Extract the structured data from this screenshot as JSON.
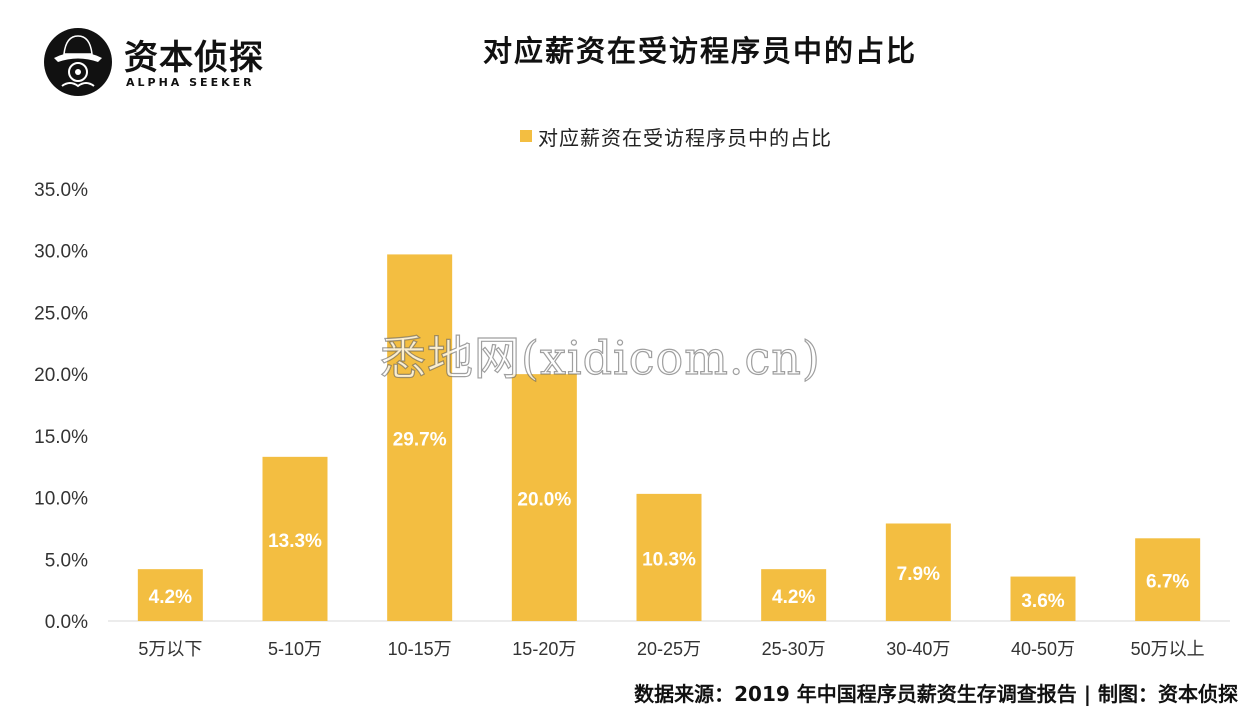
{
  "logo": {
    "name_cn": "资本侦探",
    "name_en": "ALPHA SEEKER",
    "icon": "detective-hat-icon"
  },
  "chart_data": {
    "type": "bar",
    "title": "对应薪资在受访程序员中的占比",
    "categories": [
      "5万以下",
      "5-10万",
      "10-15万",
      "15-20万",
      "20-25万",
      "25-30万",
      "30-40万",
      "40-50万",
      "50万以上"
    ],
    "series": [
      {
        "name": "对应薪资在受访程序员中的占比",
        "values": [
          4.2,
          13.3,
          29.7,
          20.0,
          10.3,
          4.2,
          7.9,
          3.6,
          6.7
        ],
        "data_labels": [
          "4.2%",
          "13.3%",
          "29.7%",
          "20.0%",
          "10.3%",
          "4.2%",
          "7.9%",
          "3.6%",
          "6.7%"
        ]
      }
    ],
    "ylim": [
      0,
      35
    ],
    "y_ticks": [
      "0.0%",
      "5.0%",
      "10.0%",
      "15.0%",
      "20.0%",
      "25.0%",
      "30.0%",
      "35.0%"
    ],
    "xlabel": "",
    "ylabel": "",
    "grid": false,
    "legend_position": "top-center",
    "colors": {
      "bar": "#F3BE41",
      "data_label": "#ffffff",
      "axis_text": "#333333"
    }
  },
  "watermark": "悉地网(xidicom.cn)",
  "source": "数据来源：2019 年中国程序员薪资生存调查报告 | 制图：资本侦探"
}
